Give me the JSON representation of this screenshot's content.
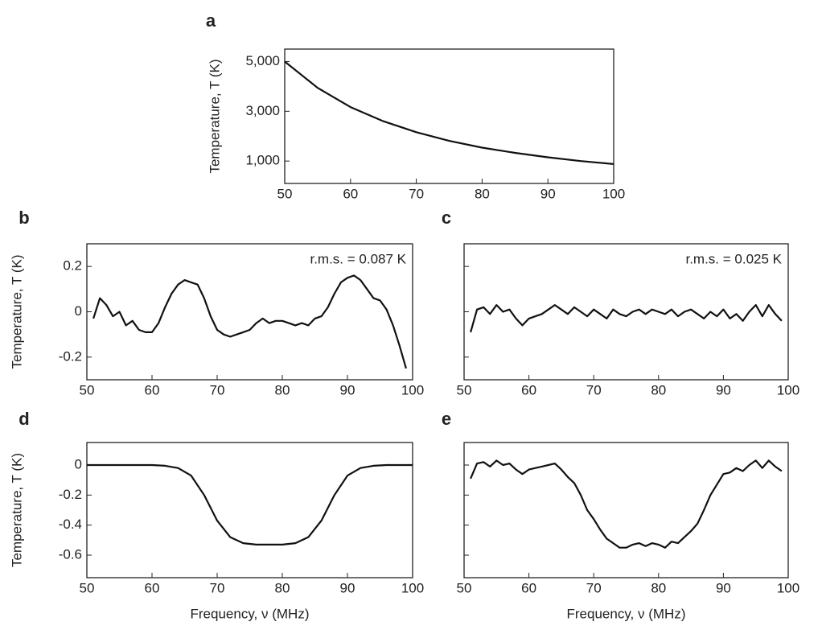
{
  "chart_data": [
    {
      "type": "line",
      "label": "a",
      "ylabel": "Temperature, T (K)",
      "color": "#111111",
      "x": [
        50,
        55,
        60,
        65,
        70,
        75,
        80,
        85,
        90,
        95,
        100
      ],
      "values": [
        5000,
        3940,
        3170,
        2600,
        2160,
        1810,
        1540,
        1330,
        1150,
        1000,
        880
      ],
      "xlim": [
        50,
        100
      ],
      "ylim": [
        100,
        5500
      ],
      "xticks": [
        50,
        60,
        70,
        80,
        90,
        100
      ],
      "yticks": [
        {
          "value": 1000,
          "label": "1,000"
        },
        {
          "value": 3000,
          "label": "3,000"
        },
        {
          "value": 5000,
          "label": "5,000"
        }
      ]
    },
    {
      "type": "line",
      "label": "b",
      "ylabel": "Temperature, T (K)",
      "annotation": "r.m.s. = 0.087 K",
      "color": "#111111",
      "x": [
        51,
        52,
        53,
        54,
        55,
        56,
        57,
        58,
        59,
        60,
        61,
        62,
        63,
        64,
        65,
        66,
        67,
        68,
        69,
        70,
        71,
        72,
        73,
        74,
        75,
        76,
        77,
        78,
        79,
        80,
        81,
        82,
        83,
        84,
        85,
        86,
        87,
        88,
        89,
        90,
        91,
        92,
        93,
        94,
        95,
        96,
        97,
        98,
        99
      ],
      "values": [
        -0.03,
        0.06,
        0.03,
        -0.02,
        0.0,
        -0.06,
        -0.04,
        -0.08,
        -0.09,
        -0.09,
        -0.05,
        0.02,
        0.08,
        0.12,
        0.14,
        0.13,
        0.12,
        0.06,
        -0.02,
        -0.08,
        -0.1,
        -0.11,
        -0.1,
        -0.09,
        -0.08,
        -0.05,
        -0.03,
        -0.05,
        -0.04,
        -0.04,
        -0.05,
        -0.06,
        -0.05,
        -0.06,
        -0.03,
        -0.02,
        0.02,
        0.08,
        0.13,
        0.15,
        0.16,
        0.14,
        0.1,
        0.06,
        0.05,
        0.01,
        -0.06,
        -0.15,
        -0.25
      ],
      "xlim": [
        50,
        100
      ],
      "ylim": [
        -0.3,
        0.3
      ],
      "xticks": [
        50,
        60,
        70,
        80,
        90,
        100
      ],
      "yticks": [
        -0.2,
        0,
        0.2
      ]
    },
    {
      "type": "line",
      "label": "c",
      "annotation": "r.m.s. = 0.025 K",
      "color": "#111111",
      "ytick_labels": false,
      "x": [
        51,
        52,
        53,
        54,
        55,
        56,
        57,
        58,
        59,
        60,
        61,
        62,
        63,
        64,
        65,
        66,
        67,
        68,
        69,
        70,
        71,
        72,
        73,
        74,
        75,
        76,
        77,
        78,
        79,
        80,
        81,
        82,
        83,
        84,
        85,
        86,
        87,
        88,
        89,
        90,
        91,
        92,
        93,
        94,
        95,
        96,
        97,
        98,
        99
      ],
      "values": [
        -0.09,
        0.01,
        0.02,
        -0.01,
        0.03,
        0.0,
        0.01,
        -0.03,
        -0.06,
        -0.03,
        -0.02,
        -0.01,
        0.01,
        0.03,
        0.01,
        -0.01,
        0.02,
        0.0,
        -0.02,
        0.01,
        -0.01,
        -0.03,
        0.01,
        -0.01,
        -0.02,
        0.0,
        0.01,
        -0.01,
        0.01,
        0.0,
        -0.01,
        0.01,
        -0.02,
        0.0,
        0.01,
        -0.01,
        -0.03,
        0.0,
        -0.02,
        0.01,
        -0.03,
        -0.01,
        -0.04,
        0.0,
        0.03,
        -0.02,
        0.03,
        -0.01,
        -0.04
      ],
      "xlim": [
        50,
        100
      ],
      "ylim": [
        -0.3,
        0.3
      ],
      "xticks": [
        50,
        60,
        70,
        80,
        90,
        100
      ],
      "yticks": [
        -0.2,
        0,
        0.2
      ]
    },
    {
      "type": "line",
      "label": "d",
      "ylabel": "Temperature, T (K)",
      "xlabel": "Frequency, ν (MHz)",
      "color": "#111111",
      "x": [
        50,
        52,
        54,
        56,
        58,
        60,
        62,
        64,
        66,
        68,
        70,
        72,
        74,
        76,
        78,
        80,
        82,
        84,
        86,
        88,
        90,
        92,
        94,
        96,
        98,
        100
      ],
      "values": [
        0,
        0,
        0,
        0,
        0,
        0,
        -0.005,
        -0.02,
        -0.07,
        -0.2,
        -0.37,
        -0.48,
        -0.52,
        -0.53,
        -0.53,
        -0.53,
        -0.52,
        -0.48,
        -0.37,
        -0.2,
        -0.07,
        -0.02,
        -0.005,
        0,
        0,
        0
      ],
      "xlim": [
        50,
        100
      ],
      "ylim": [
        -0.75,
        0.15
      ],
      "xticks": [
        50,
        60,
        70,
        80,
        90,
        100
      ],
      "yticks": [
        -0.6,
        -0.4,
        -0.2,
        0
      ]
    },
    {
      "type": "line",
      "label": "e",
      "xlabel": "Frequency, ν (MHz)",
      "color": "#111111",
      "ytick_labels": false,
      "x": [
        51,
        52,
        53,
        54,
        55,
        56,
        57,
        58,
        59,
        60,
        61,
        62,
        63,
        64,
        65,
        66,
        67,
        68,
        69,
        70,
        71,
        72,
        73,
        74,
        75,
        76,
        77,
        78,
        79,
        80,
        81,
        82,
        83,
        84,
        85,
        86,
        87,
        88,
        89,
        90,
        91,
        92,
        93,
        94,
        95,
        96,
        97,
        98,
        99
      ],
      "values": [
        -0.09,
        0.01,
        0.02,
        -0.01,
        0.03,
        0.0,
        0.01,
        -0.03,
        -0.06,
        -0.03,
        -0.02,
        -0.01,
        0.0,
        0.01,
        -0.03,
        -0.08,
        -0.12,
        -0.2,
        -0.3,
        -0.36,
        -0.43,
        -0.49,
        -0.52,
        -0.55,
        -0.55,
        -0.53,
        -0.52,
        -0.54,
        -0.52,
        -0.53,
        -0.55,
        -0.51,
        -0.52,
        -0.48,
        -0.44,
        -0.39,
        -0.3,
        -0.2,
        -0.13,
        -0.06,
        -0.05,
        -0.02,
        -0.04,
        0.0,
        0.03,
        -0.02,
        0.03,
        -0.01,
        -0.04
      ],
      "xlim": [
        50,
        100
      ],
      "ylim": [
        -0.75,
        0.15
      ],
      "xticks": [
        50,
        60,
        70,
        80,
        90,
        100
      ],
      "yticks": [
        -0.6,
        -0.4,
        -0.2,
        0
      ]
    }
  ]
}
